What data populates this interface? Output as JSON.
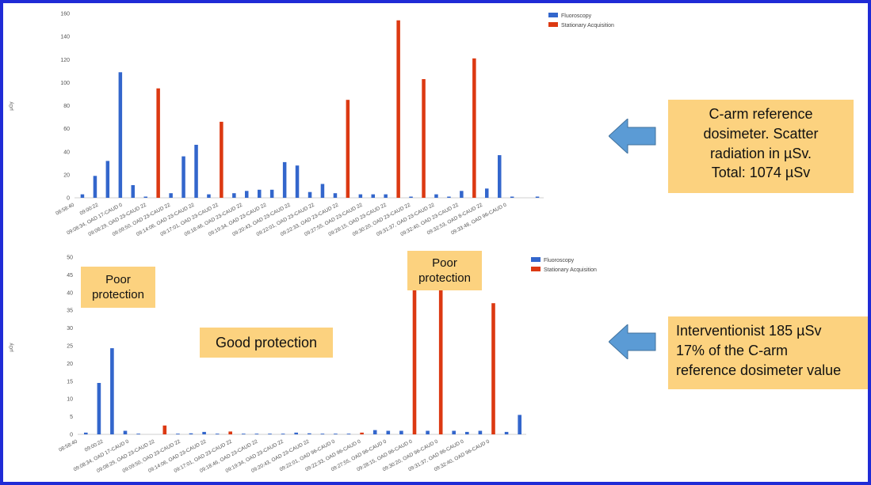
{
  "colors": {
    "fluoroscopy": "#3366cc",
    "stationary": "#dc3912",
    "callout_bg": "#fcd27f",
    "arrow": "#5b9bd5",
    "frame": "#1f2bd6"
  },
  "chart_data": [
    {
      "type": "bar",
      "ylabel": "µGy",
      "ylim": [
        0,
        160
      ],
      "yticks": [
        0,
        20,
        40,
        60,
        80,
        100,
        120,
        140,
        160
      ],
      "legend_position": "top-right",
      "grid": false,
      "series": [
        {
          "name": "Fluoroscopy",
          "color": "#3366cc",
          "values": [
            3,
            19,
            32,
            109,
            11,
            1,
            0,
            4,
            36,
            46,
            3,
            0,
            4,
            6,
            7,
            7,
            31,
            28,
            5,
            12,
            4,
            0,
            3,
            3,
            3,
            0,
            1,
            0,
            3,
            1,
            6,
            0,
            8,
            37,
            1,
            0,
            1
          ]
        },
        {
          "name": "Stationary Acquisition",
          "color": "#dc3912",
          "values": [
            0,
            0,
            0,
            0,
            0,
            0,
            95,
            0,
            0,
            0,
            0,
            66,
            0,
            0,
            0,
            0,
            0,
            0,
            0,
            0,
            0,
            85,
            0,
            0,
            0,
            154,
            0,
            103,
            0,
            0,
            0,
            121,
            0,
            0,
            0,
            0,
            0
          ]
        }
      ],
      "tick_labels": [
        "08:58:40",
        "09:00:22",
        "09:08:34, OAD 17-CAUD 0",
        "09:08:29, OAD 23-CAUD 22",
        "09:09:50, OAD 23-CAUD 22",
        "09:14:06, OAD 23-CAUD 22",
        "09:17:01, OAD 23-CAUD 22",
        "09:18:46, OAD 23-CAUD 22",
        "09:19:34, OAD 23-CAUD 22",
        "09:20:43, OAD 23-CAUD 22",
        "09:22:01, OAD 23-CAUD 22",
        "09:22:33, OAD 23-CAUD 22",
        "09:27:55, OAD 23-CAUD 22",
        "09:28:15, OAD 23-CAUD 22",
        "09:30:20, OAD 23-CAUD 22",
        "09:31:37, OAD 23-CAUD 22",
        "09:32:40, OAD 23-CAUD 22",
        "09:32:53, OAD 8-CAUD 22",
        "09:33:48, OAD 96-CAUD 0"
      ]
    },
    {
      "type": "bar",
      "ylabel": "µGy",
      "ylim": [
        0,
        50
      ],
      "yticks": [
        0,
        5,
        10,
        15,
        20,
        25,
        30,
        35,
        40,
        45,
        50
      ],
      "legend_position": "top-right",
      "grid": false,
      "series": [
        {
          "name": "Fluoroscopy",
          "color": "#3366cc",
          "values": [
            0.5,
            14.5,
            24.3,
            1,
            0.2,
            0,
            0,
            0.2,
            0.3,
            0.7,
            0.2,
            0,
            0.2,
            0.2,
            0.2,
            0.2,
            0.5,
            0.3,
            0.2,
            0.2,
            0.2,
            0,
            1.2,
            1,
            1,
            0,
            1,
            0,
            1,
            0.7,
            1,
            0,
            0.7,
            5.5
          ]
        },
        {
          "name": "Stationary Acquisition",
          "color": "#dc3912",
          "values": [
            0,
            0,
            0,
            0,
            0,
            0,
            2.5,
            0,
            0,
            0,
            0,
            0.8,
            0,
            0,
            0,
            0,
            0,
            0,
            0,
            0,
            0,
            0.5,
            0,
            0,
            0,
            43,
            0,
            42,
            0,
            0,
            0,
            37,
            0,
            0
          ]
        }
      ],
      "tick_labels": [
        "08:58:40",
        "09:00:22",
        "09:08:34, OAD 17-CAUD 0",
        "09:08:29, OAD 23-CAUD 22",
        "09:09:50, OAD 23-CAUD 22",
        "09:14:06, OAD 23-CAUD 22",
        "09:17:01, OAD 23-CAUD 22",
        "09:18:46, OAD 23-CAUD 22",
        "09:19:34, OAD 23-CAUD 22",
        "09:20:43, OAD 23-CAUD 22",
        "09:22:01, OAD 96-CAUD 0",
        "09:22:33, OAD 96-CAUD 0",
        "09:27:55, OAD 96-CAUD 0",
        "09:28:15, OAD 96-CAUD 0",
        "09:30:20, OAD 96-CAUD 0",
        "09:31:37, OAD 96-CAUD 0",
        "09:32:40, OAD 96-CAUD 0"
      ]
    }
  ],
  "notes": {
    "poor_left": "Poor protection",
    "poor_right": "Poor protection",
    "good": "Good protection"
  },
  "callouts": {
    "top": [
      "C-arm reference",
      "dosimeter. Scatter",
      "radiation in µSv.",
      "Total: 1074 µSv"
    ],
    "bottom": [
      "Interventionist 185 µSv",
      "17% of the C-arm",
      "reference dosimeter value"
    ]
  }
}
